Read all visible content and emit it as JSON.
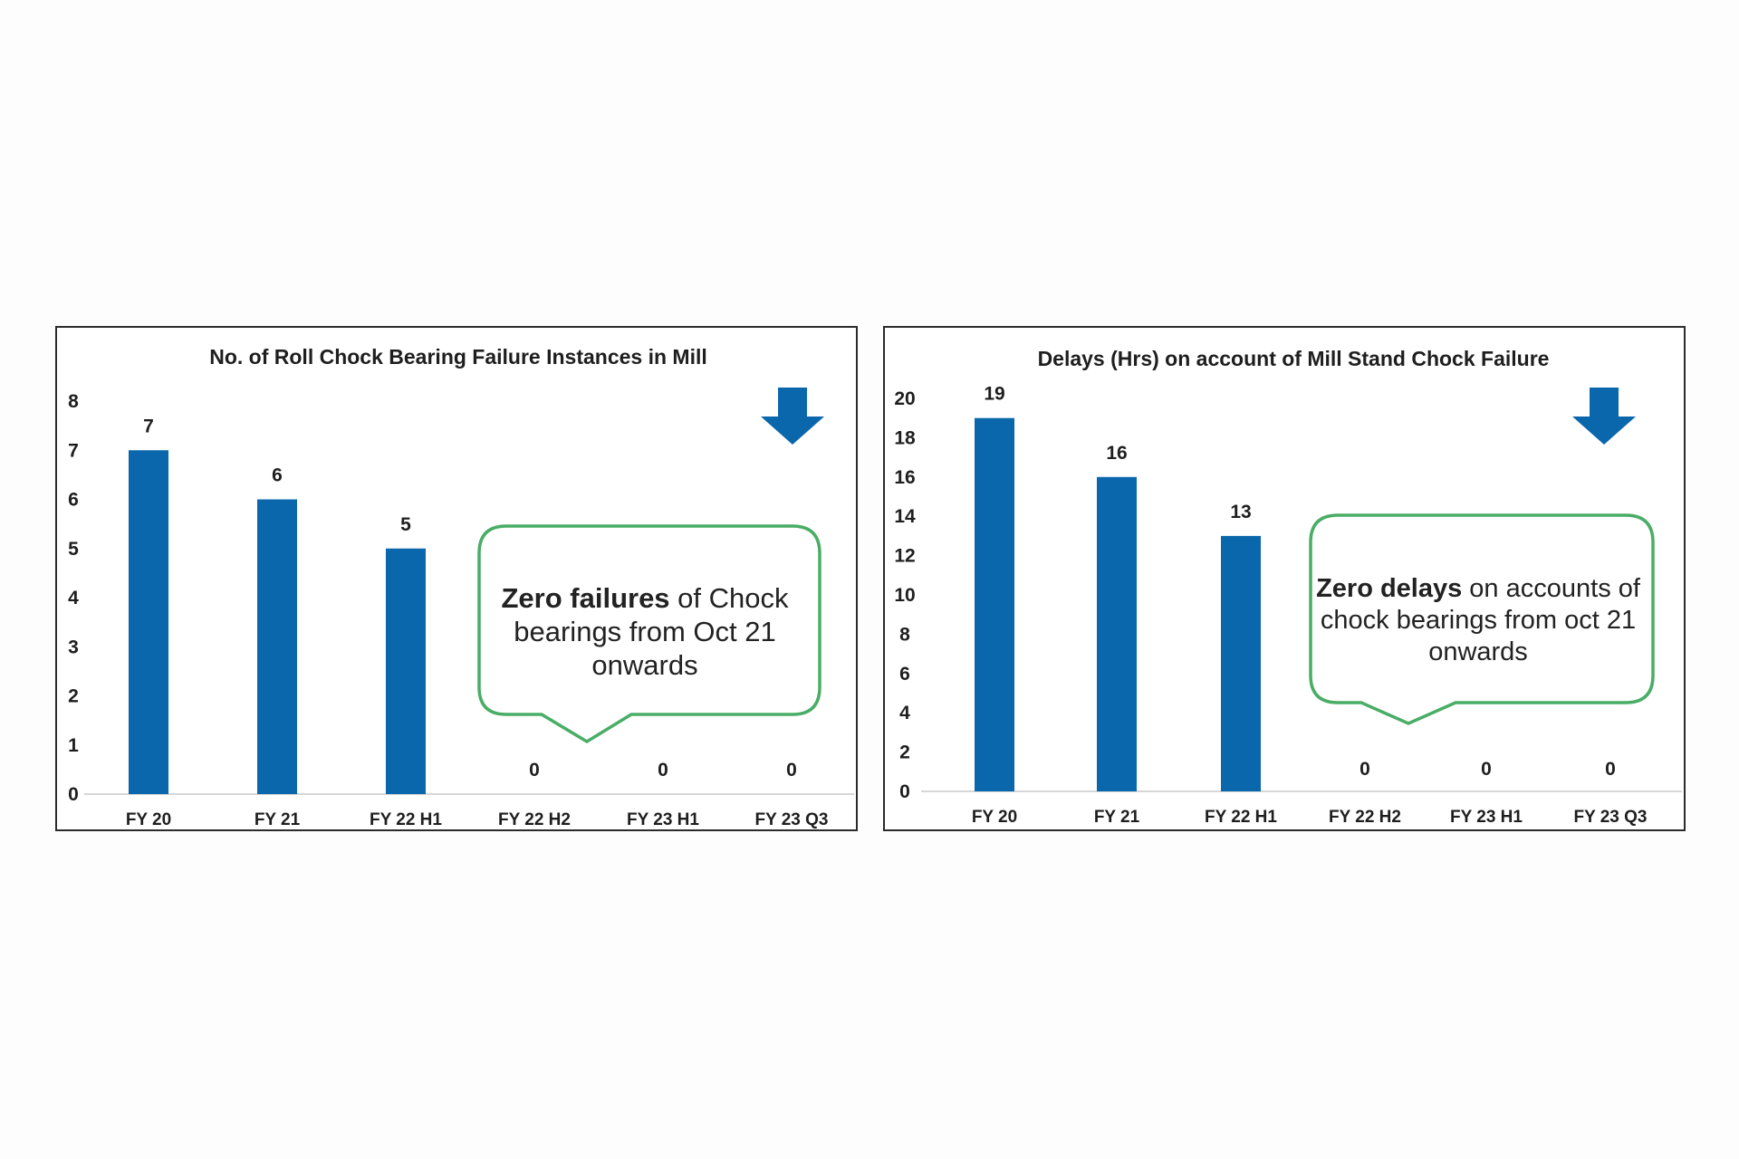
{
  "colors": {
    "bar": "#0a67ac",
    "callout_border": "#49ad65",
    "arrow": "#0a67ac",
    "axis": "#c8c8c8"
  },
  "chart_data": [
    {
      "type": "bar",
      "title": "No. of Roll Chock Bearing Failure Instances in Mill",
      "categories": [
        "FY 20",
        "FY 21",
        "FY 22 H1",
        "FY 22 H2",
        "FY 23 H1",
        "FY 23 Q3"
      ],
      "values": [
        7,
        6,
        5,
        0,
        0,
        0
      ],
      "ylim": [
        0,
        8
      ],
      "yticks": [
        0,
        1,
        2,
        3,
        4,
        5,
        6,
        7,
        8
      ],
      "xlabel": "",
      "ylabel": "",
      "grid": false,
      "legend": "none",
      "decoration": "down-arrow-icon",
      "callout": {
        "bold": "Zero failures",
        "rest": " of Chock bearings from Oct 21 onwards"
      }
    },
    {
      "type": "bar",
      "title": "Delays (Hrs) on account of Mill Stand Chock Failure",
      "categories": [
        "FY 20",
        "FY 21",
        "FY 22 H1",
        "FY 22 H2",
        "FY 23 H1",
        "FY 23 Q3"
      ],
      "values": [
        19,
        16,
        13,
        0,
        0,
        0
      ],
      "ylim": [
        0,
        20
      ],
      "yticks": [
        0,
        2,
        4,
        6,
        8,
        10,
        12,
        14,
        16,
        18,
        20
      ],
      "xlabel": "",
      "ylabel": "",
      "grid": false,
      "legend": "none",
      "decoration": "down-arrow-icon",
      "callout": {
        "bold": "Zero delays",
        "rest": " on accounts of chock bearings from oct 21 onwards"
      }
    }
  ]
}
